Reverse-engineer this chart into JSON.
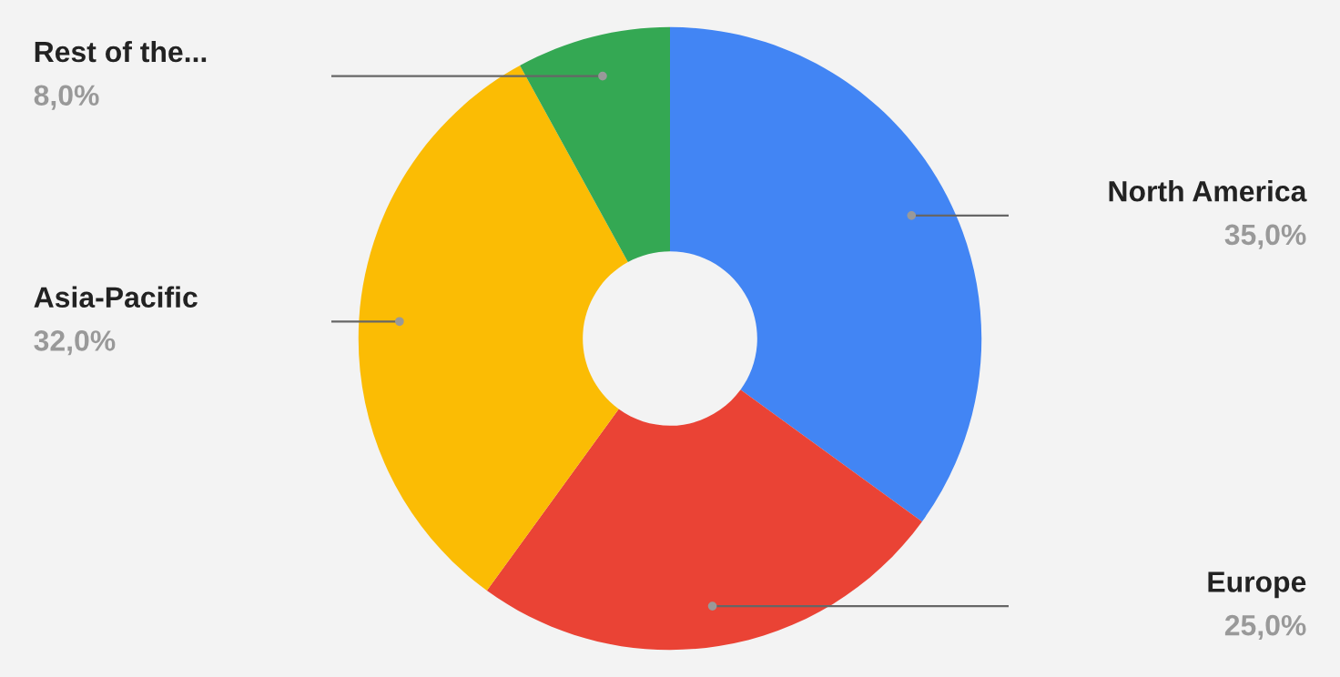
{
  "chart_data": {
    "type": "donut",
    "categories": [
      "North America",
      "Europe",
      "Asia-Pacific",
      "Rest of the..."
    ],
    "values": [
      35,
      25,
      32,
      8
    ],
    "colors": [
      "#4285f4",
      "#ea4335",
      "#fbbc04",
      "#34a853"
    ],
    "value_labels": [
      "35,0%",
      "25,0%",
      "32,0%",
      "8,0%"
    ],
    "legend": false
  }
}
